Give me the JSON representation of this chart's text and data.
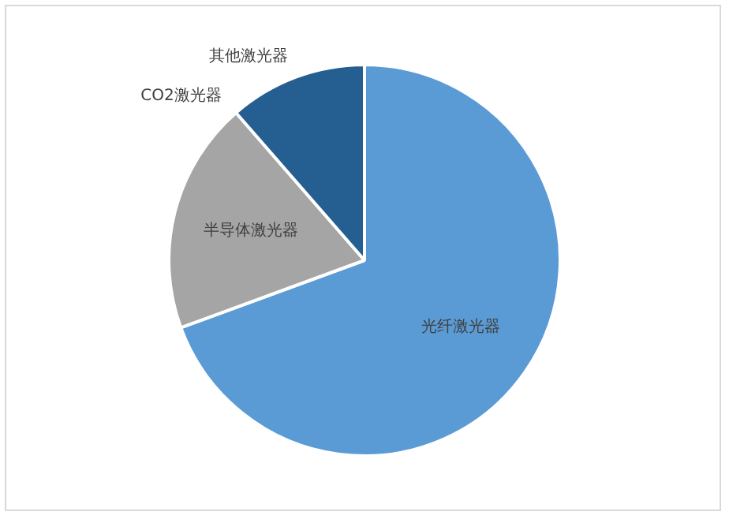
{
  "chart_data": {
    "type": "pie",
    "categories": [
      "光纤激光器",
      "半导体激光器",
      "CO2激光器",
      "其他激光器"
    ],
    "values": [
      69.4,
      19.2,
      null,
      11.4
    ],
    "colors": [
      "#5b9bd5",
      "#a5a5a5",
      "#ed7d31",
      "#255e91"
    ],
    "legend": false
  }
}
